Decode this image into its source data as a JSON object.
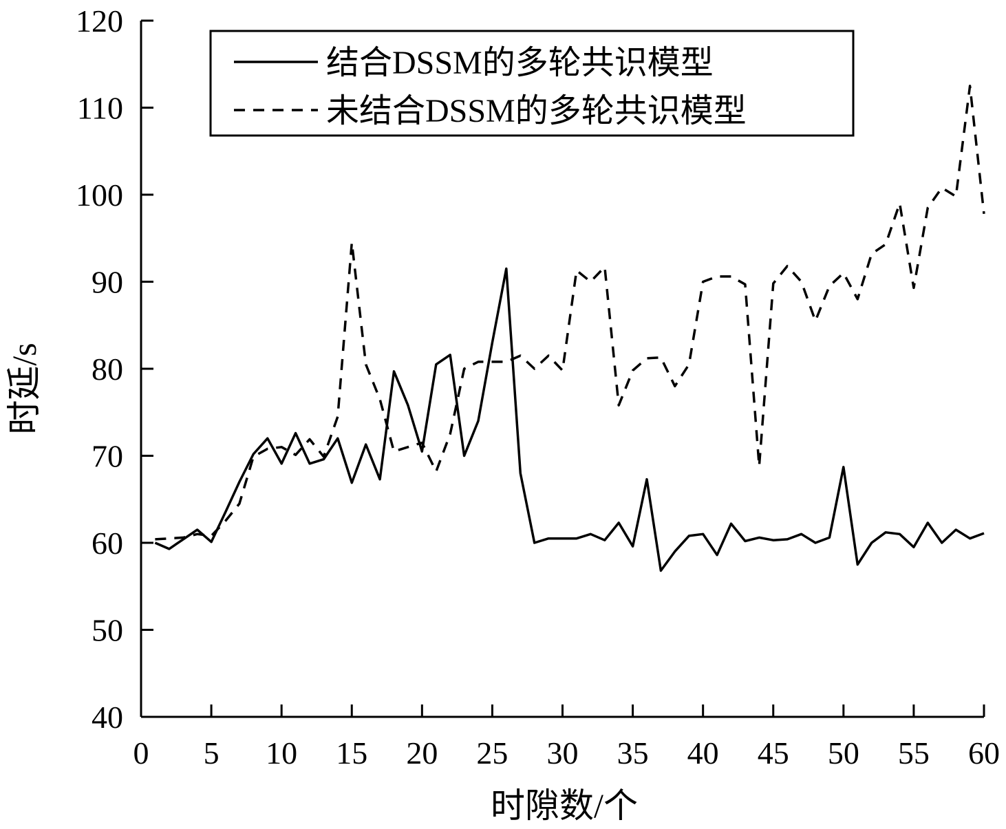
{
  "chart_data": {
    "type": "line",
    "title": "",
    "xlabel": "时隙数/个",
    "ylabel": "时延/s",
    "xlim": [
      0,
      60
    ],
    "ylim": [
      40,
      120
    ],
    "xticks": [
      "0",
      "5",
      "10",
      "15",
      "20",
      "25",
      "30",
      "35",
      "40",
      "45",
      "50",
      "55",
      "60"
    ],
    "yticks": [
      "40",
      "50",
      "60",
      "70",
      "80",
      "90",
      "100",
      "110",
      "120"
    ],
    "grid": false,
    "legend_position": "top",
    "x": [
      1,
      2,
      3,
      4,
      5,
      6,
      7,
      8,
      9,
      10,
      11,
      12,
      13,
      14,
      15,
      16,
      17,
      18,
      19,
      20,
      21,
      22,
      23,
      24,
      25,
      26,
      27,
      28,
      29,
      30,
      31,
      32,
      33,
      34,
      35,
      36,
      37,
      38,
      39,
      40,
      41,
      42,
      43,
      44,
      45,
      46,
      47,
      48,
      49,
      50,
      51,
      52,
      53,
      54,
      55,
      56,
      57,
      58,
      59,
      60
    ],
    "series": [
      {
        "name": "结合DSSM的多轮共识模型",
        "style": "solid",
        "color": "#000000",
        "values": [
          60.0,
          59.3,
          60.4,
          61.5,
          60.1,
          63.5,
          67.0,
          70.2,
          72.0,
          69.1,
          72.6,
          69.1,
          69.6,
          72.0,
          66.9,
          71.3,
          67.3,
          79.7,
          75.8,
          70.5,
          80.5,
          81.6,
          70.0,
          74.0,
          83.0,
          91.5,
          68.0,
          60.0,
          60.5,
          60.5,
          60.5,
          61.0,
          60.3,
          62.3,
          59.6,
          67.3,
          56.8,
          59.0,
          60.8,
          61.0,
          58.6,
          62.2,
          60.2,
          60.6,
          60.3,
          60.4,
          61.0,
          60.0,
          60.6,
          68.7,
          57.5,
          60.0,
          61.2,
          61.0,
          59.5,
          62.3,
          60.0,
          61.5,
          60.5,
          61.1
        ]
      },
      {
        "name": "未结合DSSM的多轮共识模型",
        "style": "dashed",
        "color": "#000000",
        "values": [
          60.4,
          60.5,
          60.6,
          61.0,
          60.8,
          62.5,
          64.5,
          69.9,
          70.8,
          71.0,
          70.1,
          71.9,
          69.9,
          74.5,
          94.5,
          80.5,
          76.5,
          70.5,
          71.0,
          71.5,
          68.2,
          72.5,
          80.0,
          80.8,
          80.8,
          80.8,
          81.5,
          80.0,
          81.5,
          79.8,
          91.3,
          90.0,
          91.7,
          75.8,
          79.8,
          81.2,
          81.3,
          78.0,
          80.5,
          90.0,
          90.6,
          90.6,
          89.7,
          68.8,
          89.8,
          91.8,
          90.0,
          85.5,
          89.5,
          91.0,
          88.0,
          93.2,
          94.3,
          99.0,
          89.3,
          98.5,
          100.8,
          99.8,
          112.5,
          97.8
        ]
      }
    ]
  }
}
